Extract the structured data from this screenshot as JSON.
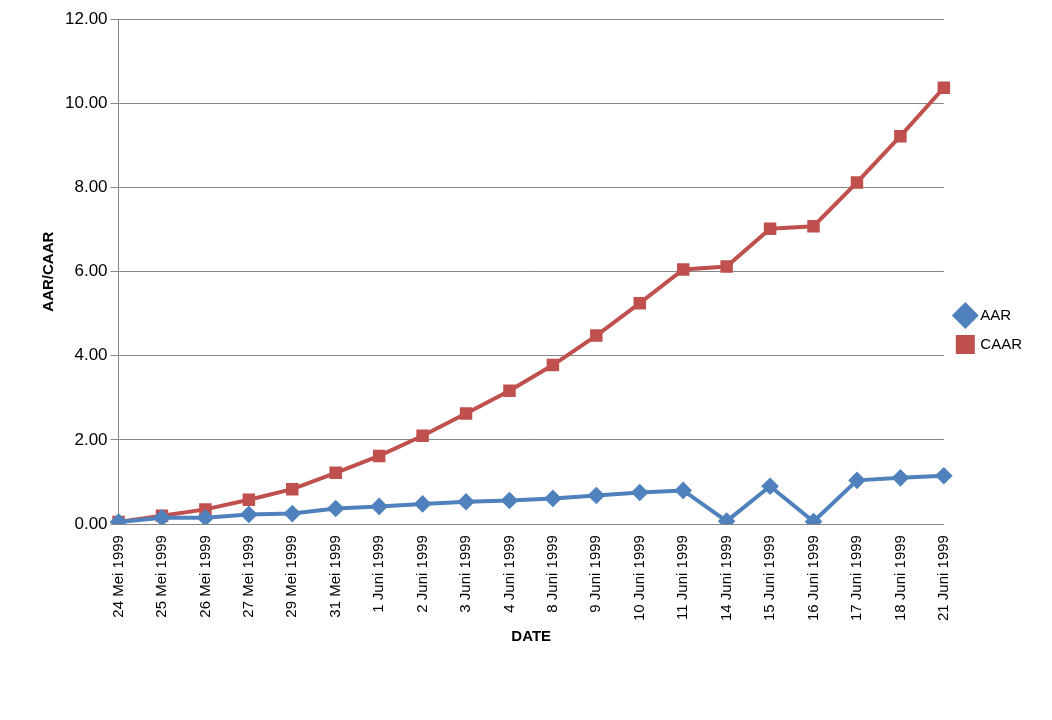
{
  "chart_data": {
    "type": "line",
    "x_label": "DATE",
    "y_label": "AAR/CAAR",
    "categories": [
      "24 Mei 1999",
      "25 Mei 1999",
      "26 Mei 1999",
      "27 Mei 1999",
      "29 Mei 1999",
      "31 Mei 1999",
      "1 Juni 1999",
      "2 Juni 1999",
      "3 Juni 1999",
      "4 Juni 1999",
      "8 Juni 1999",
      "9 Juni 1999",
      "10 Juni 1999",
      "11 Juni 1999",
      "14 Juni 1999",
      "15 Juni 1999",
      "16 Juni 1999",
      "17 Juni 1999",
      "18 Juni 1999",
      "21 Juni 1999"
    ],
    "series": [
      {
        "name": "AAR",
        "color": "#4f81bd",
        "marker": "diamond",
        "values": [
          0.05,
          0.15,
          0.15,
          0.23,
          0.25,
          0.37,
          0.42,
          0.48,
          0.53,
          0.56,
          0.61,
          0.68,
          0.75,
          0.8,
          0.07,
          0.9,
          0.06,
          1.04,
          1.1,
          1.15
        ]
      },
      {
        "name": "CAAR",
        "color": "#c0504d",
        "marker": "square",
        "values": [
          0.05,
          0.2,
          0.35,
          0.58,
          0.83,
          1.22,
          1.62,
          2.1,
          2.63,
          3.17,
          3.78,
          4.48,
          5.25,
          6.05,
          6.12,
          7.02,
          7.08,
          8.12,
          9.22,
          10.37
        ]
      }
    ],
    "ylim": [
      0,
      12
    ],
    "yticks": [
      {
        "value": 0,
        "label": "0.00"
      },
      {
        "value": 2,
        "label": "2.00"
      },
      {
        "value": 4,
        "label": "4.00"
      },
      {
        "value": 6,
        "label": "6.00"
      },
      {
        "value": 8,
        "label": "8.00"
      },
      {
        "value": 10,
        "label": "10.00"
      },
      {
        "value": 12,
        "label": "12.00"
      }
    ],
    "grid": true,
    "legend": "right"
  }
}
